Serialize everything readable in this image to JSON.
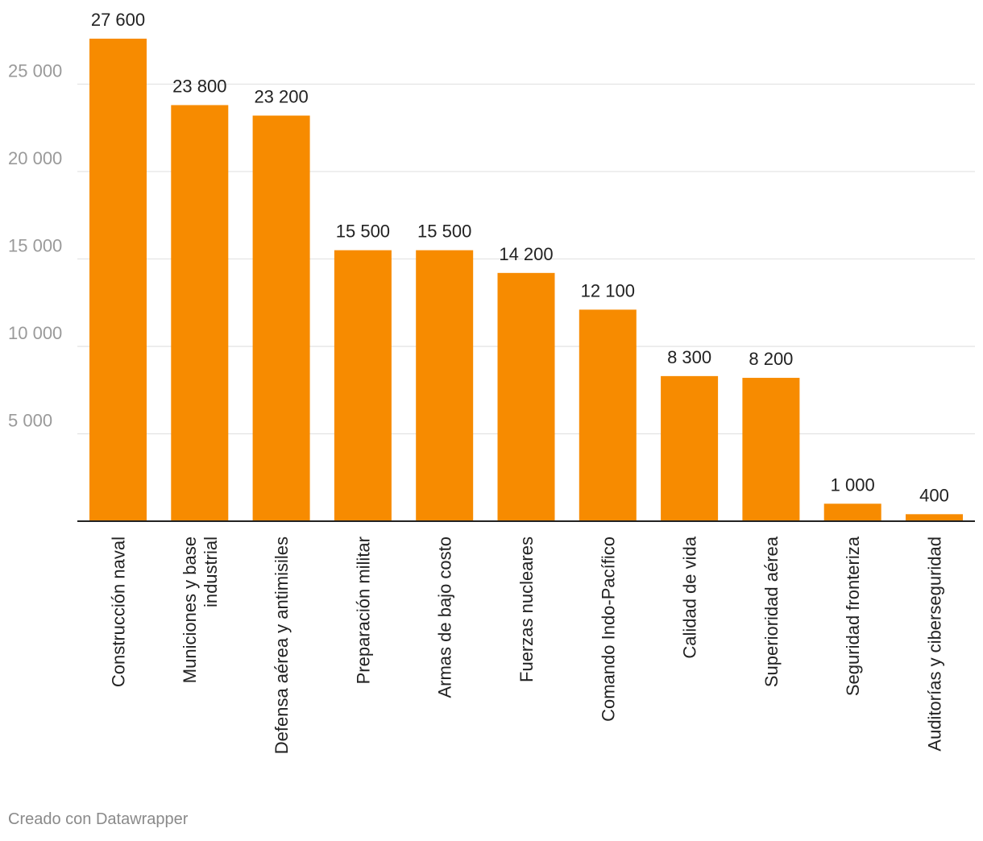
{
  "chart_data": {
    "type": "bar",
    "categories": [
      [
        "Construcción naval"
      ],
      [
        "Municiones y base",
        "industrial"
      ],
      [
        "Defensa aérea y antimisiles"
      ],
      [
        "Preparación militar"
      ],
      [
        "Armas de bajo costo"
      ],
      [
        "Fuerzas nucleares"
      ],
      [
        "Comando Indo-Pacífico"
      ],
      [
        "Calidad de vida"
      ],
      [
        "Superioridad aérea"
      ],
      [
        "Seguridad fronteriza"
      ],
      [
        "Auditorías y ciberseguridad"
      ]
    ],
    "values": [
      27600,
      23800,
      23200,
      15500,
      15500,
      14200,
      12100,
      8300,
      8200,
      1000,
      400
    ],
    "value_labels": [
      "27 600",
      "23 800",
      "23 200",
      "15 500",
      "15 500",
      "14 200",
      "12 100",
      "8 300",
      "8 200",
      "1 000",
      "400"
    ],
    "ylim": [
      0,
      27600
    ],
    "yticks": [
      5000,
      10000,
      15000,
      20000,
      25000
    ],
    "ytick_labels": [
      "5 000",
      "10 000",
      "15 000",
      "20 000",
      "25 000"
    ],
    "grid": true,
    "title": "",
    "xlabel": "",
    "ylabel": "",
    "colors": {
      "bar": "#f78b00",
      "grid": "#e2e2e2",
      "axis": "#222222"
    }
  },
  "footer": {
    "credit": "Creado con Datawrapper"
  }
}
